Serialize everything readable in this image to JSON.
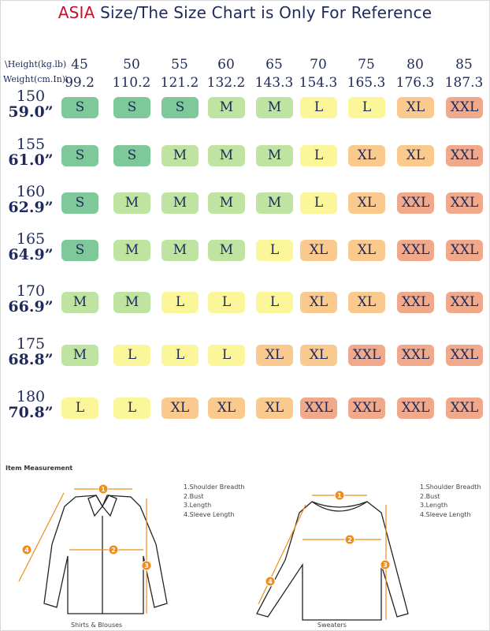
{
  "title": {
    "highlight": "ASIA",
    "rest": " Size/The Size Chart is Only For Reference"
  },
  "axis": {
    "weight_label": "\\Height(kg.lb)",
    "height_label": "Weight(cm.In)\\"
  },
  "weights_kg": [
    "45",
    "50",
    "55",
    "60",
    "65",
    "70",
    "75",
    "80",
    "85"
  ],
  "weights_lb": [
    "99.2",
    "110.2",
    "121.2",
    "132.2",
    "143.3",
    "154.3",
    "165.3",
    "176.3",
    "187.3"
  ],
  "rows": [
    {
      "cm": "150",
      "in": "59.0”",
      "sizes": [
        "S",
        "S",
        "S",
        "M",
        "M",
        "L",
        "L",
        "XL",
        "XXL"
      ]
    },
    {
      "cm": "155",
      "in": "61.0”",
      "sizes": [
        "S",
        "S",
        "M",
        "M",
        "M",
        "L",
        "XL",
        "XL",
        "XXL"
      ]
    },
    {
      "cm": "160",
      "in": "62.9”",
      "sizes": [
        "S",
        "M",
        "M",
        "M",
        "M",
        "L",
        "XL",
        "XXL",
        "XXL"
      ]
    },
    {
      "cm": "165",
      "in": "64.9”",
      "sizes": [
        "S",
        "M",
        "M",
        "M",
        "L",
        "XL",
        "XL",
        "XXL",
        "XXL"
      ]
    },
    {
      "cm": "170",
      "in": "66.9”",
      "sizes": [
        "M",
        "M",
        "L",
        "L",
        "L",
        "XL",
        "XL",
        "XXL",
        "XXL"
      ]
    },
    {
      "cm": "175",
      "in": "68.8”",
      "sizes": [
        "M",
        "L",
        "L",
        "L",
        "XL",
        "XL",
        "XXL",
        "XXL",
        "XXL"
      ]
    },
    {
      "cm": "180",
      "in": "70.8”",
      "sizes": [
        "L",
        "L",
        "XL",
        "XL",
        "XL",
        "XXL",
        "XXL",
        "XXL",
        "XXL"
      ]
    }
  ],
  "size_colors": {
    "S": "#7ec89a",
    "M": "#bfe3a0",
    "L": "#fbf69a",
    "XL": "#f9c98e",
    "XXL": "#f0a98b"
  },
  "measurement": {
    "section_title": "Item Measurement",
    "items": [
      "1.Shoulder Breadth",
      "2.Bust",
      "3.Length",
      "4.Sleeve Length"
    ],
    "markers": [
      "1",
      "2",
      "3",
      "4"
    ],
    "shirt_caption": "Shirts & Blouses",
    "sweater_caption": "Sweaters",
    "marker_color": "#f08c1a"
  }
}
